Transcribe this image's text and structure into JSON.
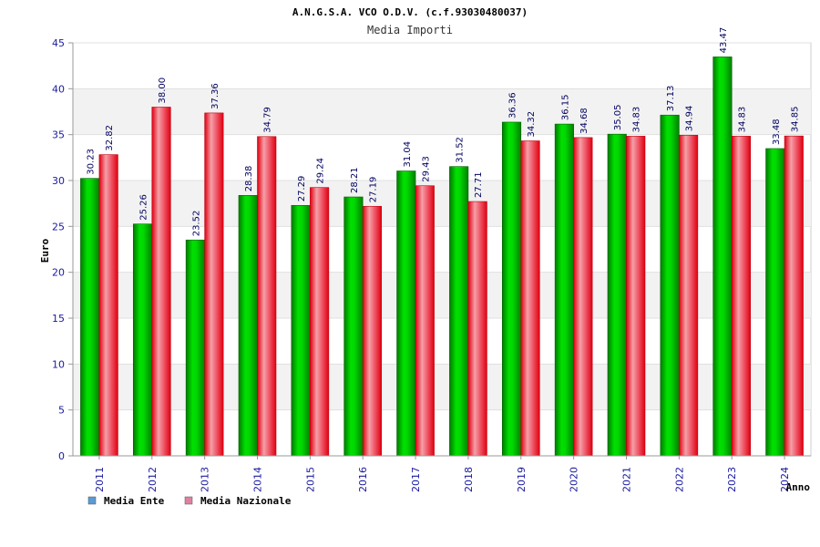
{
  "chart_data": {
    "type": "bar",
    "title": "A.N.G.S.A. VCO O.D.V. (c.f.93030480037)",
    "subtitle": "Media Importi",
    "xlabel": "Anno",
    "ylabel": "Euro",
    "ylim": [
      0,
      45
    ],
    "yticks": [
      "0",
      "5",
      "10",
      "15",
      "20",
      "25",
      "30",
      "35",
      "40",
      "45"
    ],
    "categories": [
      "2011",
      "2012",
      "2013",
      "2014",
      "2015",
      "2016",
      "2017",
      "2018",
      "2019",
      "2020",
      "2021",
      "2022",
      "2023",
      "2024"
    ],
    "series": [
      {
        "name": "Media Ente",
        "color": "#00c000",
        "legend_color": "#5b9bd5",
        "values": [
          30.23,
          25.26,
          23.52,
          28.38,
          27.29,
          28.21,
          31.04,
          31.52,
          36.36,
          36.15,
          35.05,
          37.13,
          43.47,
          33.48
        ],
        "labels": [
          "30.23",
          "25.26",
          "23.52",
          "28.38",
          "27.29",
          "28.21",
          "31.04",
          "31.52",
          "36.36",
          "36.15",
          "35.05",
          "37.13",
          "43.47",
          "33.48"
        ]
      },
      {
        "name": "Media Nazionale",
        "color": "#f01020",
        "legend_color": "#e080a0",
        "values": [
          32.82,
          38.0,
          37.36,
          34.79,
          29.24,
          27.19,
          29.43,
          27.71,
          34.32,
          34.68,
          34.83,
          34.94,
          34.83,
          34.85
        ],
        "labels": [
          "32.82",
          "38.00",
          "37.36",
          "34.79",
          "29.24",
          "27.19",
          "29.43",
          "27.71",
          "34.32",
          "34.68",
          "34.83",
          "34.94",
          "34.83",
          "34.85"
        ]
      }
    ],
    "legend": "bottom-left",
    "grid": true
  }
}
